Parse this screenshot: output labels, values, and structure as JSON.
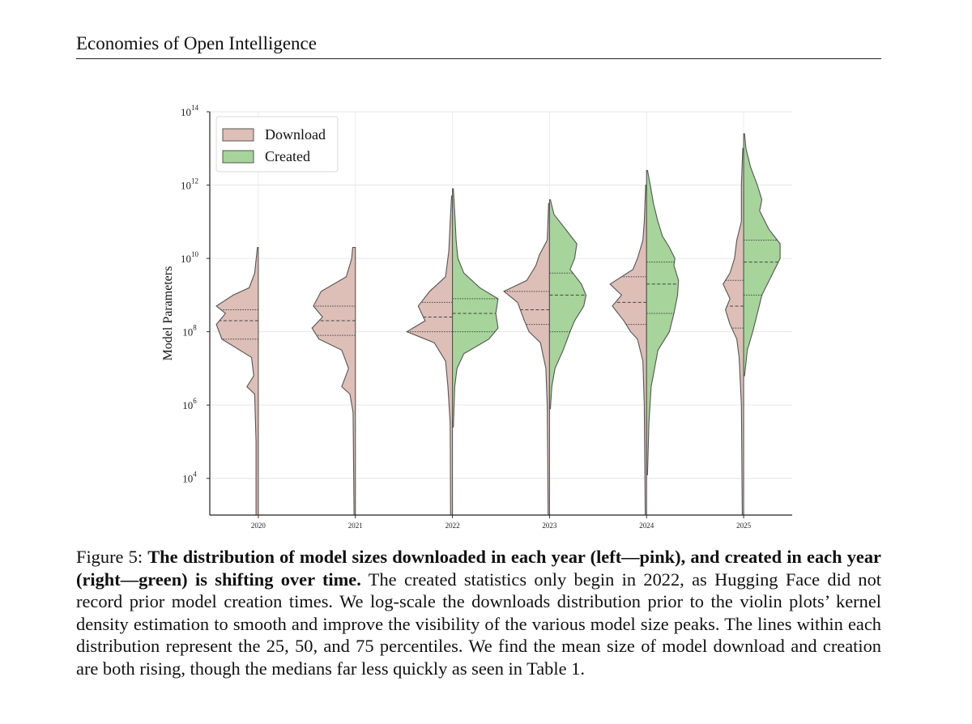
{
  "header": {
    "title": "Economies of Open Intelligence"
  },
  "figure": {
    "caption_label": "Figure 5:",
    "caption_bold": "The distribution of model sizes downloaded in each year (left—pink), and created in each year (right—green) is shifting over time.",
    "caption_text": "The created statistics only begin in 2022, as Hugging Face did not record prior model creation times. We log-scale the downloads distribution prior to the violin plots’ kernel density estimation to smooth and improve the visibility of the various model size peaks. The lines within each distribution represent the 25, 50, and 75 percentiles. We find the mean size of model download and creation are both rising, though the medians far less quickly as seen in Table 1."
  },
  "chart_data": {
    "type": "violin",
    "ylabel": "Model Parameters",
    "yscale": "log",
    "ylim_log10": [
      3,
      14
    ],
    "ytick_exponents": [
      4,
      6,
      8,
      10,
      12,
      14
    ],
    "categories": [
      "2020",
      "2021",
      "2022",
      "2023",
      "2024",
      "2025"
    ],
    "grid": true,
    "legend": {
      "placement": "top-left",
      "entries": [
        "Download",
        "Created"
      ]
    },
    "colors": {
      "Download": "#ddbfb7",
      "Created": "#a6d49a",
      "edge": "#555555"
    },
    "series": [
      {
        "name": "Download",
        "side": "left",
        "violins": [
          {
            "year": "2020",
            "log10_range": [
              3.0,
              10.3
            ],
            "percentiles_log10": [
              7.8,
              8.3,
              8.6
            ],
            "density": [
              [
                3.0,
                0.05
              ],
              [
                5.0,
                0.05
              ],
              [
                6.3,
                0.08
              ],
              [
                6.5,
                0.25
              ],
              [
                6.8,
                0.1
              ],
              [
                7.3,
                0.15
              ],
              [
                7.8,
                0.8
              ],
              [
                8.2,
                0.92
              ],
              [
                8.5,
                0.72
              ],
              [
                8.7,
                0.92
              ],
              [
                9.0,
                0.55
              ],
              [
                9.2,
                0.2
              ],
              [
                9.6,
                0.08
              ],
              [
                10.3,
                0.02
              ]
            ]
          },
          {
            "year": "2021",
            "log10_range": [
              3.0,
              10.3
            ],
            "percentiles_log10": [
              7.9,
              8.3,
              8.7
            ],
            "density": [
              [
                3.0,
                0.03
              ],
              [
                5.8,
                0.05
              ],
              [
                6.3,
                0.12
              ],
              [
                6.5,
                0.3
              ],
              [
                7.0,
                0.15
              ],
              [
                7.5,
                0.3
              ],
              [
                7.8,
                0.8
              ],
              [
                8.1,
                0.95
              ],
              [
                8.4,
                0.72
              ],
              [
                8.7,
                0.92
              ],
              [
                9.1,
                0.75
              ],
              [
                9.5,
                0.2
              ],
              [
                10.0,
                0.08
              ],
              [
                10.3,
                0.06
              ]
            ]
          },
          {
            "year": "2022",
            "log10_range": [
              3.0,
              11.7
            ],
            "percentiles_log10": [
              8.0,
              8.4,
              8.8
            ],
            "density": [
              [
                3.0,
                0.04
              ],
              [
                5.5,
                0.05
              ],
              [
                6.5,
                0.1
              ],
              [
                7.2,
                0.15
              ],
              [
                7.7,
                0.4
              ],
              [
                8.0,
                1.0
              ],
              [
                8.3,
                0.6
              ],
              [
                8.7,
                0.75
              ],
              [
                9.1,
                0.5
              ],
              [
                9.5,
                0.15
              ],
              [
                10.2,
                0.08
              ],
              [
                11.0,
                0.05
              ],
              [
                11.7,
                0.02
              ]
            ]
          },
          {
            "year": "2023",
            "log10_range": [
              3.0,
              11.5
            ],
            "percentiles_log10": [
              8.2,
              8.6,
              9.1
            ],
            "density": [
              [
                3.0,
                0.03
              ],
              [
                6.0,
                0.05
              ],
              [
                7.0,
                0.08
              ],
              [
                7.7,
                0.2
              ],
              [
                8.0,
                0.45
              ],
              [
                8.3,
                0.55
              ],
              [
                8.8,
                0.7
              ],
              [
                9.1,
                1.0
              ],
              [
                9.4,
                0.5
              ],
              [
                9.8,
                0.3
              ],
              [
                10.1,
                0.22
              ],
              [
                10.5,
                0.05
              ],
              [
                11.5,
                0.02
              ]
            ]
          },
          {
            "year": "2024",
            "log10_range": [
              3.0,
              12.0
            ],
            "percentiles_log10": [
              8.2,
              8.8,
              9.5
            ],
            "density": [
              [
                3.0,
                0.03
              ],
              [
                6.0,
                0.05
              ],
              [
                7.2,
                0.08
              ],
              [
                7.8,
                0.2
              ],
              [
                8.0,
                0.35
              ],
              [
                8.3,
                0.5
              ],
              [
                8.7,
                0.75
              ],
              [
                9.0,
                0.55
              ],
              [
                9.3,
                0.8
              ],
              [
                9.7,
                0.3
              ],
              [
                10.0,
                0.2
              ],
              [
                10.5,
                0.08
              ],
              [
                11.0,
                0.05
              ],
              [
                12.0,
                0.02
              ]
            ]
          },
          {
            "year": "2025",
            "log10_range": [
              3.0,
              13.0
            ],
            "percentiles_log10": [
              8.1,
              8.7,
              9.4
            ],
            "density": [
              [
                3.0,
                0.03
              ],
              [
                6.0,
                0.05
              ],
              [
                7.3,
                0.1
              ],
              [
                7.8,
                0.15
              ],
              [
                8.2,
                0.3
              ],
              [
                8.6,
                0.4
              ],
              [
                8.9,
                0.3
              ],
              [
                9.3,
                0.45
              ],
              [
                9.6,
                0.3
              ],
              [
                10.0,
                0.2
              ],
              [
                10.5,
                0.15
              ],
              [
                11.0,
                0.05
              ],
              [
                12.0,
                0.05
              ],
              [
                13.0,
                0.02
              ]
            ]
          }
        ]
      },
      {
        "name": "Created",
        "side": "right",
        "violins": [
          {
            "year": "2022",
            "log10_range": [
              5.4,
              11.9
            ],
            "percentiles_log10": [
              8.0,
              8.5,
              8.9
            ],
            "density": [
              [
                5.4,
                0.02
              ],
              [
                6.5,
                0.05
              ],
              [
                7.0,
                0.1
              ],
              [
                7.4,
                0.25
              ],
              [
                7.8,
                0.8
              ],
              [
                8.1,
                1.0
              ],
              [
                8.5,
                0.95
              ],
              [
                8.9,
                1.0
              ],
              [
                9.2,
                0.6
              ],
              [
                9.6,
                0.25
              ],
              [
                10.0,
                0.12
              ],
              [
                10.5,
                0.08
              ],
              [
                11.0,
                0.06
              ],
              [
                11.9,
                0.02
              ]
            ]
          },
          {
            "year": "2023",
            "log10_range": [
              5.9,
              11.6
            ],
            "percentiles_log10": [
              8.0,
              9.0,
              9.6
            ],
            "density": [
              [
                5.9,
                0.02
              ],
              [
                6.5,
                0.05
              ],
              [
                7.0,
                0.12
              ],
              [
                7.5,
                0.3
              ],
              [
                8.0,
                0.45
              ],
              [
                8.3,
                0.55
              ],
              [
                8.7,
                0.75
              ],
              [
                9.0,
                0.8
              ],
              [
                9.3,
                0.7
              ],
              [
                9.7,
                0.45
              ],
              [
                10.0,
                0.55
              ],
              [
                10.4,
                0.6
              ],
              [
                10.8,
                0.35
              ],
              [
                11.2,
                0.1
              ],
              [
                11.6,
                0.02
              ]
            ]
          },
          {
            "year": "2024",
            "log10_range": [
              4.1,
              12.4
            ],
            "percentiles_log10": [
              8.5,
              9.3,
              9.9
            ],
            "density": [
              [
                4.1,
                0.02
              ],
              [
                5.5,
                0.05
              ],
              [
                6.5,
                0.1
              ],
              [
                7.5,
                0.25
              ],
              [
                8.0,
                0.5
              ],
              [
                8.5,
                0.6
              ],
              [
                9.0,
                0.68
              ],
              [
                9.4,
                0.7
              ],
              [
                9.8,
                0.6
              ],
              [
                10.0,
                0.62
              ],
              [
                10.3,
                0.5
              ],
              [
                10.6,
                0.35
              ],
              [
                11.0,
                0.25
              ],
              [
                11.5,
                0.15
              ],
              [
                12.0,
                0.08
              ],
              [
                12.4,
                0.02
              ]
            ]
          },
          {
            "year": "2025",
            "log10_range": [
              6.8,
              13.4
            ],
            "percentiles_log10": [
              9.0,
              9.9,
              10.5
            ],
            "density": [
              [
                6.8,
                0.02
              ],
              [
                7.5,
                0.08
              ],
              [
                8.0,
                0.2
              ],
              [
                8.5,
                0.3
              ],
              [
                9.0,
                0.4
              ],
              [
                9.5,
                0.6
              ],
              [
                10.0,
                0.8
              ],
              [
                10.4,
                0.8
              ],
              [
                10.8,
                0.55
              ],
              [
                11.3,
                0.35
              ],
              [
                11.6,
                0.4
              ],
              [
                12.0,
                0.3
              ],
              [
                12.5,
                0.15
              ],
              [
                13.0,
                0.05
              ],
              [
                13.4,
                0.02
              ]
            ]
          }
        ]
      }
    ]
  }
}
